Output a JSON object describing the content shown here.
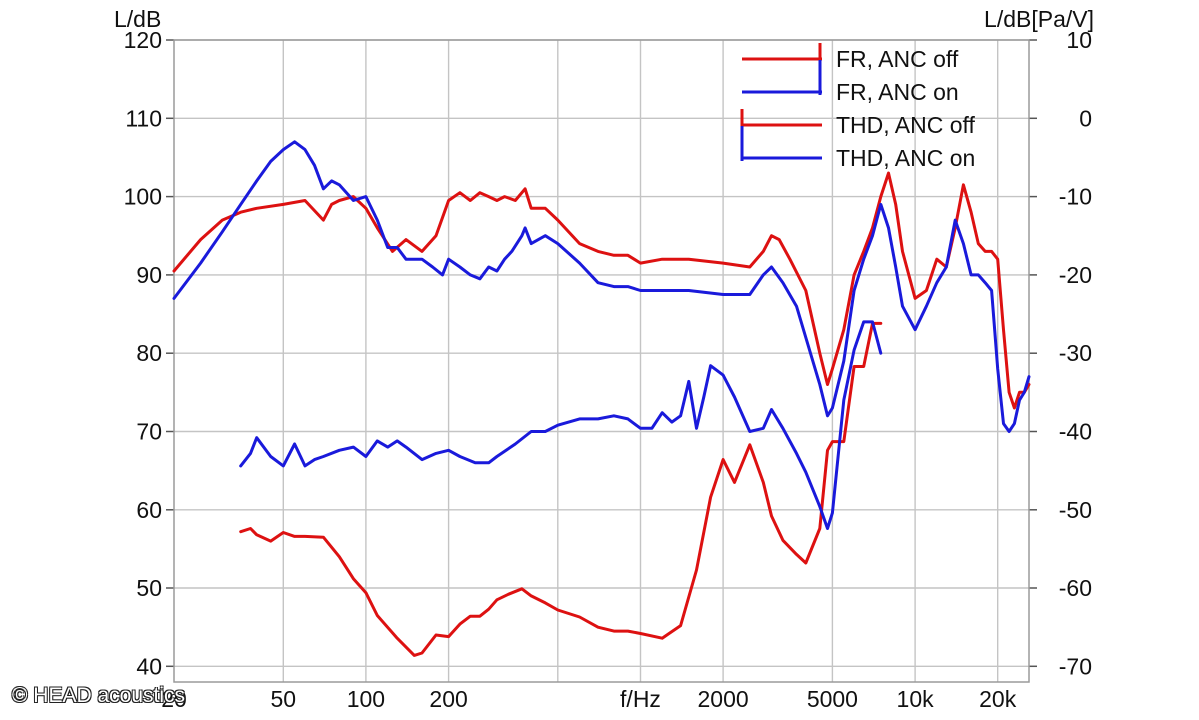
{
  "chart_data": {
    "type": "line",
    "title": "",
    "y_left_label": "L/dB",
    "y_right_label": "L/dB[Pa/V]",
    "x_label": "f/Hz",
    "x_scale": "log",
    "xlim": [
      20,
      26000
    ],
    "ylim_left": [
      38,
      120
    ],
    "ylim_right": [
      -72,
      10
    ],
    "x_ticks": [
      {
        "v": 20,
        "label": "20"
      },
      {
        "v": 50,
        "label": "50"
      },
      {
        "v": 100,
        "label": "100"
      },
      {
        "v": 200,
        "label": "200"
      },
      {
        "v": 1000,
        "label": "f/Hz"
      },
      {
        "v": 2000,
        "label": "2000"
      },
      {
        "v": 5000,
        "label": "5000"
      },
      {
        "v": 10000,
        "label": "10k"
      },
      {
        "v": 20000,
        "label": "20k"
      }
    ],
    "x_gridlines": [
      50,
      100,
      200,
      500,
      1000,
      2000,
      5000,
      10000,
      20000
    ],
    "y_left_ticks": [
      40,
      50,
      60,
      70,
      80,
      90,
      100,
      110,
      120
    ],
    "y_right_ticks": [
      10,
      0,
      -10,
      -20,
      -30,
      -40,
      -50,
      -60,
      -70
    ],
    "grid": true,
    "legend_position": "top-right",
    "series": [
      {
        "name": "FR, ANC off",
        "color": "#dd1111",
        "axis": "left",
        "x": [
          20,
          25,
          30,
          35,
          40,
          50,
          60,
          70,
          75,
          80,
          90,
          100,
          110,
          125,
          140,
          160,
          180,
          200,
          220,
          240,
          260,
          280,
          300,
          320,
          350,
          380,
          400,
          450,
          500,
          600,
          700,
          800,
          900,
          1000,
          1200,
          1500,
          2000,
          2500,
          2800,
          3000,
          3200,
          3500,
          4000,
          4500,
          4800,
          5000,
          5500,
          6000,
          6500,
          7000,
          7500,
          8000,
          8500,
          9000,
          10000,
          11000,
          12000,
          13000,
          14000,
          15000,
          16000,
          17000,
          18000,
          19000,
          20000,
          21000,
          22000,
          23000,
          24000,
          25000,
          26000
        ],
        "y": [
          90.5,
          94.5,
          97,
          98,
          98.5,
          99,
          99.5,
          97,
          99,
          99.5,
          100,
          98.5,
          96,
          93,
          94.5,
          93,
          95,
          99.5,
          100.5,
          99.5,
          100.5,
          100,
          99.5,
          100,
          99.5,
          101,
          98.5,
          98.5,
          97,
          94,
          93,
          92.5,
          92.5,
          91.5,
          92,
          92,
          91.5,
          91,
          93,
          95,
          94.5,
          92,
          88,
          80,
          76,
          78,
          83,
          90,
          93,
          96,
          100,
          103,
          99,
          93,
          87,
          88,
          92,
          91,
          96,
          101.5,
          98,
          94,
          93,
          93,
          92,
          83,
          75,
          73,
          75,
          75,
          76
        ]
      },
      {
        "name": "FR, ANC on",
        "color": "#1a1adb",
        "axis": "left",
        "x": [
          20,
          25,
          30,
          35,
          40,
          45,
          50,
          55,
          60,
          65,
          70,
          75,
          80,
          90,
          100,
          110,
          120,
          130,
          140,
          150,
          160,
          175,
          190,
          200,
          220,
          240,
          260,
          280,
          300,
          320,
          340,
          370,
          380,
          400,
          450,
          500,
          600,
          700,
          800,
          900,
          1000,
          1200,
          1500,
          2000,
          2500,
          2800,
          3000,
          3300,
          3700,
          4000,
          4500,
          4800,
          5000,
          5500,
          6000,
          6500,
          7000,
          7500,
          8000,
          8500,
          9000,
          10000,
          11000,
          12000,
          13000,
          14000,
          15000,
          16000,
          17000,
          18000,
          19000,
          20000,
          21000,
          22000,
          23000,
          24000,
          25000,
          26000
        ],
        "y": [
          87,
          91.5,
          95.5,
          99,
          102,
          104.5,
          106,
          107,
          106,
          104,
          101,
          102,
          101.5,
          99.5,
          100,
          97,
          93.5,
          93.5,
          92,
          92,
          92,
          91,
          90,
          92,
          91,
          90,
          89.5,
          91,
          90.5,
          92,
          93,
          95,
          96,
          94,
          95,
          94,
          91.5,
          89,
          88.5,
          88.5,
          88,
          88,
          88,
          87.5,
          87.5,
          90,
          91,
          89,
          86,
          82,
          76,
          72,
          73,
          79,
          88,
          92,
          95,
          99,
          96,
          91,
          86,
          83,
          86,
          89,
          91,
          97,
          94,
          90,
          90,
          89,
          88,
          78,
          71,
          70,
          71,
          74,
          75,
          77
        ]
      },
      {
        "name": "THD, ANC off",
        "color": "#dd1111",
        "axis": "right",
        "x": [
          35,
          38,
          40,
          45,
          50,
          55,
          60,
          70,
          80,
          90,
          100,
          110,
          130,
          150,
          160,
          180,
          200,
          220,
          240,
          260,
          280,
          300,
          330,
          370,
          400,
          450,
          500,
          600,
          700,
          800,
          900,
          1000,
          1200,
          1400,
          1600,
          1800,
          2000,
          2200,
          2500,
          2800,
          3000,
          3300,
          3700,
          4000,
          4500,
          4800,
          5000,
          5500,
          6000,
          6500,
          7000,
          7500
        ],
        "y": [
          -52.8,
          -52.4,
          -53.2,
          -54,
          -52.9,
          -53.4,
          -53.4,
          -53.5,
          -56,
          -58.8,
          -60.6,
          -63.5,
          -66.4,
          -68.6,
          -68.3,
          -66,
          -66.2,
          -64.6,
          -63.6,
          -63.6,
          -62.7,
          -61.5,
          -60.8,
          -60.1,
          -61,
          -61.9,
          -62.8,
          -63.7,
          -65,
          -65.5,
          -65.5,
          -65.8,
          -66.4,
          -64.8,
          -57.7,
          -48.4,
          -43.6,
          -46.5,
          -41.7,
          -46.5,
          -50.8,
          -53.9,
          -55.7,
          -56.8,
          -52.4,
          -42.4,
          -41.3,
          -41.3,
          -31.7,
          -31.7,
          -26.2,
          -26.2
        ]
      },
      {
        "name": "THD, ANC on",
        "color": "#1a1adb",
        "axis": "right",
        "x": [
          35,
          38,
          40,
          45,
          50,
          55,
          60,
          65,
          70,
          80,
          90,
          100,
          110,
          120,
          130,
          140,
          160,
          180,
          200,
          220,
          250,
          280,
          300,
          350,
          400,
          450,
          500,
          600,
          700,
          800,
          900,
          1000,
          1100,
          1200,
          1300,
          1400,
          1500,
          1600,
          1700,
          1800,
          2000,
          2200,
          2500,
          2800,
          3000,
          3300,
          3700,
          4000,
          4500,
          4800,
          5000,
          5500,
          6000,
          6500,
          7000,
          7500
        ],
        "y": [
          -44.4,
          -42.8,
          -40.8,
          -43.2,
          -44.4,
          -41.6,
          -44.4,
          -43.6,
          -43.2,
          -42.4,
          -42,
          -43.2,
          -41.2,
          -42,
          -41.2,
          -42,
          -43.6,
          -42.8,
          -42.4,
          -43.2,
          -44,
          -44,
          -43.2,
          -41.6,
          -40,
          -40,
          -39.2,
          -38.4,
          -38.4,
          -38,
          -38.4,
          -39.6,
          -39.6,
          -37.6,
          -38.8,
          -38,
          -33.6,
          -39.6,
          -35.6,
          -31.6,
          -32.8,
          -35.6,
          -40,
          -39.6,
          -37.2,
          -39.6,
          -42.8,
          -45.2,
          -49.6,
          -52.4,
          -50.4,
          -36,
          -29.6,
          -26,
          -26,
          -30
        ]
      }
    ]
  },
  "watermark": "© HEAD acoustics"
}
